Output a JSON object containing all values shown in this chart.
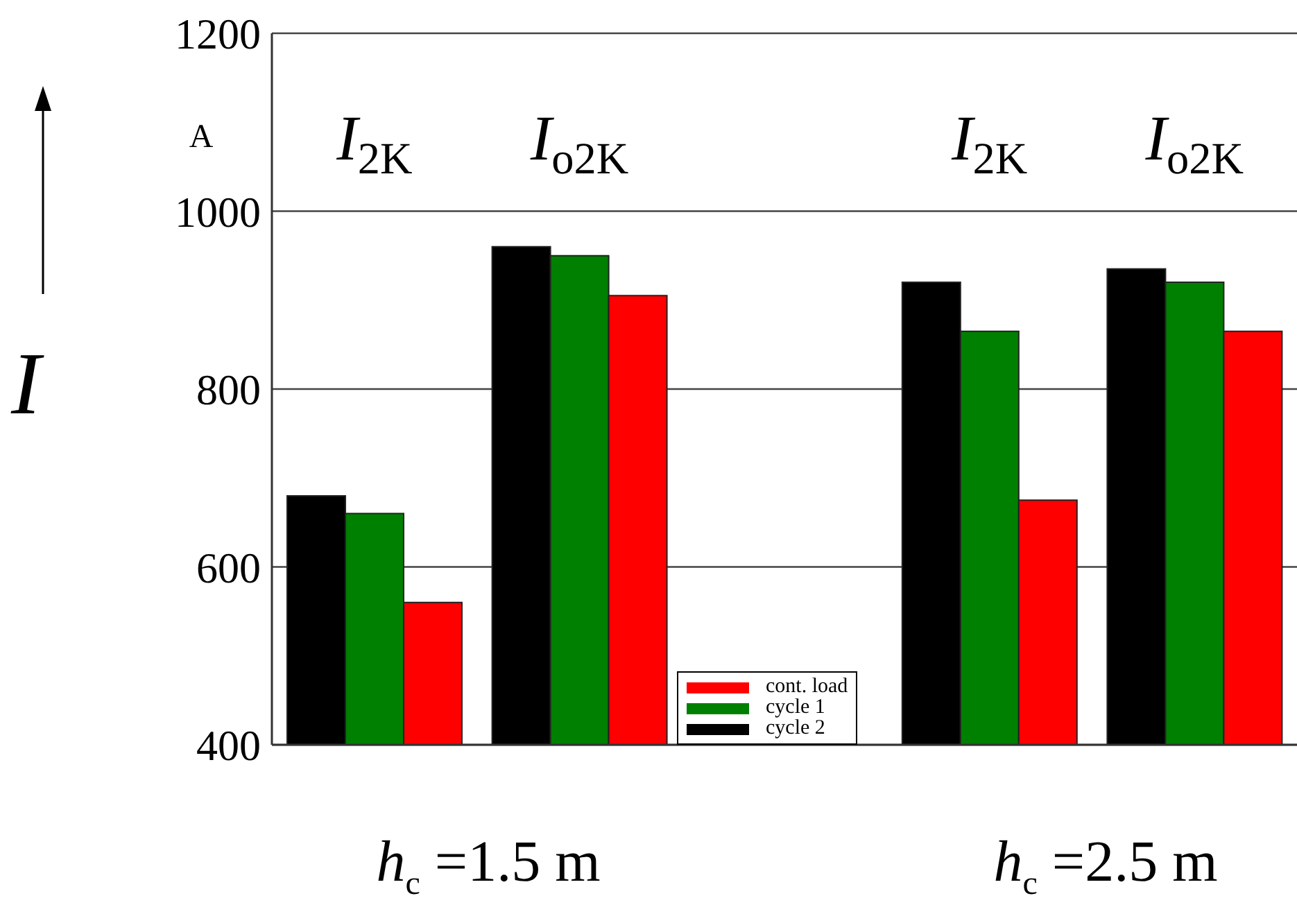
{
  "chart_data": {
    "type": "bar",
    "ylabel": "I",
    "categories": [
      "I$_{2K}$",
      "I$_{o2K}$",
      null,
      "I$_{2K}$",
      "I$_{o2K}$"
    ],
    "series": [
      {
        "name": "cycle 2",
        "color": "#000000",
        "values": [
          680,
          960,
          null,
          920,
          935
        ]
      },
      {
        "name": "cycle 1",
        "color": "#008000",
        "values": [
          660,
          950,
          null,
          865,
          920
        ]
      },
      {
        "name": "cont. load",
        "color": "#ff0000",
        "values": [
          560,
          905,
          null,
          675,
          865
        ]
      }
    ],
    "ylim": [
      400,
      1200
    ],
    "yticks": [
      400,
      600,
      800,
      1000,
      1200
    ],
    "grid": "y",
    "legend": "bottom",
    "annotations": [
      "h$_{c}$ =1.5 m",
      "h$_{c}$ =2.5 m",
      "A"
    ]
  }
}
